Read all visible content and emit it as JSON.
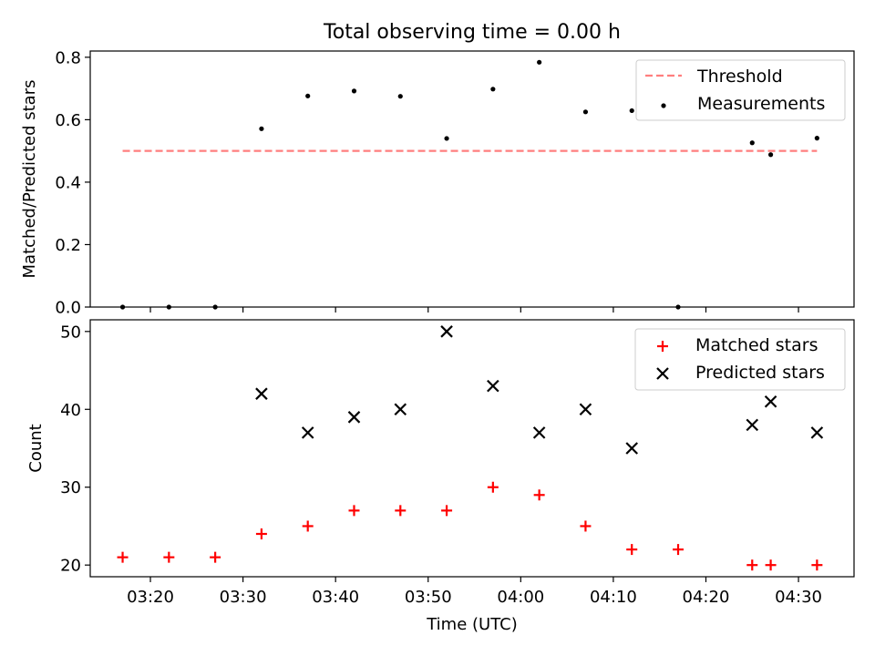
{
  "figure": {
    "title": "Total observing time = 0.00 h"
  },
  "chart_data": [
    {
      "type": "scatter",
      "ylabel": "Matched/Predicted stars",
      "ylim": [
        0,
        0.82
      ],
      "yticks": [
        0.0,
        0.2,
        0.4,
        0.6,
        0.8
      ],
      "ytick_labels": [
        "0.0",
        "0.2",
        "0.4",
        "0.6",
        "0.8"
      ],
      "legend_position": "top-right",
      "series": [
        {
          "name": "Threshold",
          "kind": "line",
          "style": "dashed",
          "color": "#ff7f7f",
          "points": [
            [
              "03:17",
              0.5
            ],
            [
              "04:32",
              0.5
            ]
          ]
        },
        {
          "name": "Measurements",
          "kind": "scatter",
          "marker": "dot",
          "color": "#000000",
          "points": [
            [
              "03:17",
              0.0
            ],
            [
              "03:22",
              0.0
            ],
            [
              "03:27",
              0.0
            ],
            [
              "03:32",
              0.571
            ],
            [
              "03:37",
              0.676
            ],
            [
              "03:42",
              0.692
            ],
            [
              "03:47",
              0.675
            ],
            [
              "03:52",
              0.54
            ],
            [
              "03:57",
              0.698
            ],
            [
              "04:02",
              0.784
            ],
            [
              "04:07",
              0.625
            ],
            [
              "04:12",
              0.629
            ],
            [
              "04:17",
              0.0
            ],
            [
              "04:25",
              0.526
            ],
            [
              "04:27",
              0.488
            ],
            [
              "04:32",
              0.541
            ]
          ]
        }
      ]
    },
    {
      "type": "scatter",
      "xlabel": "Time (UTC)",
      "ylabel": "Count",
      "xlim": [
        "03:13:30",
        "04:36:00"
      ],
      "ylim": [
        18.5,
        51.5
      ],
      "yticks": [
        20,
        30,
        40,
        50
      ],
      "ytick_labels": [
        "20",
        "30",
        "40",
        "50"
      ],
      "xticks": [
        "03:20",
        "03:30",
        "03:40",
        "03:50",
        "04:00",
        "04:10",
        "04:20",
        "04:30"
      ],
      "legend_position": "top-right",
      "series": [
        {
          "name": "Matched stars",
          "marker": "plus",
          "color": "#ff0000",
          "points": [
            [
              "03:17",
              21
            ],
            [
              "03:22",
              21
            ],
            [
              "03:27",
              21
            ],
            [
              "03:32",
              24
            ],
            [
              "03:37",
              25
            ],
            [
              "03:42",
              27
            ],
            [
              "03:47",
              27
            ],
            [
              "03:52",
              27
            ],
            [
              "03:57",
              30
            ],
            [
              "04:02",
              29
            ],
            [
              "04:07",
              25
            ],
            [
              "04:12",
              22
            ],
            [
              "04:17",
              22
            ],
            [
              "04:25",
              20
            ],
            [
              "04:27",
              20
            ],
            [
              "04:32",
              20
            ]
          ]
        },
        {
          "name": "Predicted stars",
          "marker": "x",
          "color": "#000000",
          "points": [
            [
              "03:32",
              42
            ],
            [
              "03:37",
              37
            ],
            [
              "03:42",
              39
            ],
            [
              "03:47",
              40
            ],
            [
              "03:52",
              50
            ],
            [
              "03:57",
              43
            ],
            [
              "04:02",
              37
            ],
            [
              "04:07",
              40
            ],
            [
              "04:12",
              35
            ],
            [
              "04:25",
              38
            ],
            [
              "04:27",
              41
            ],
            [
              "04:32",
              37
            ]
          ]
        }
      ]
    }
  ]
}
